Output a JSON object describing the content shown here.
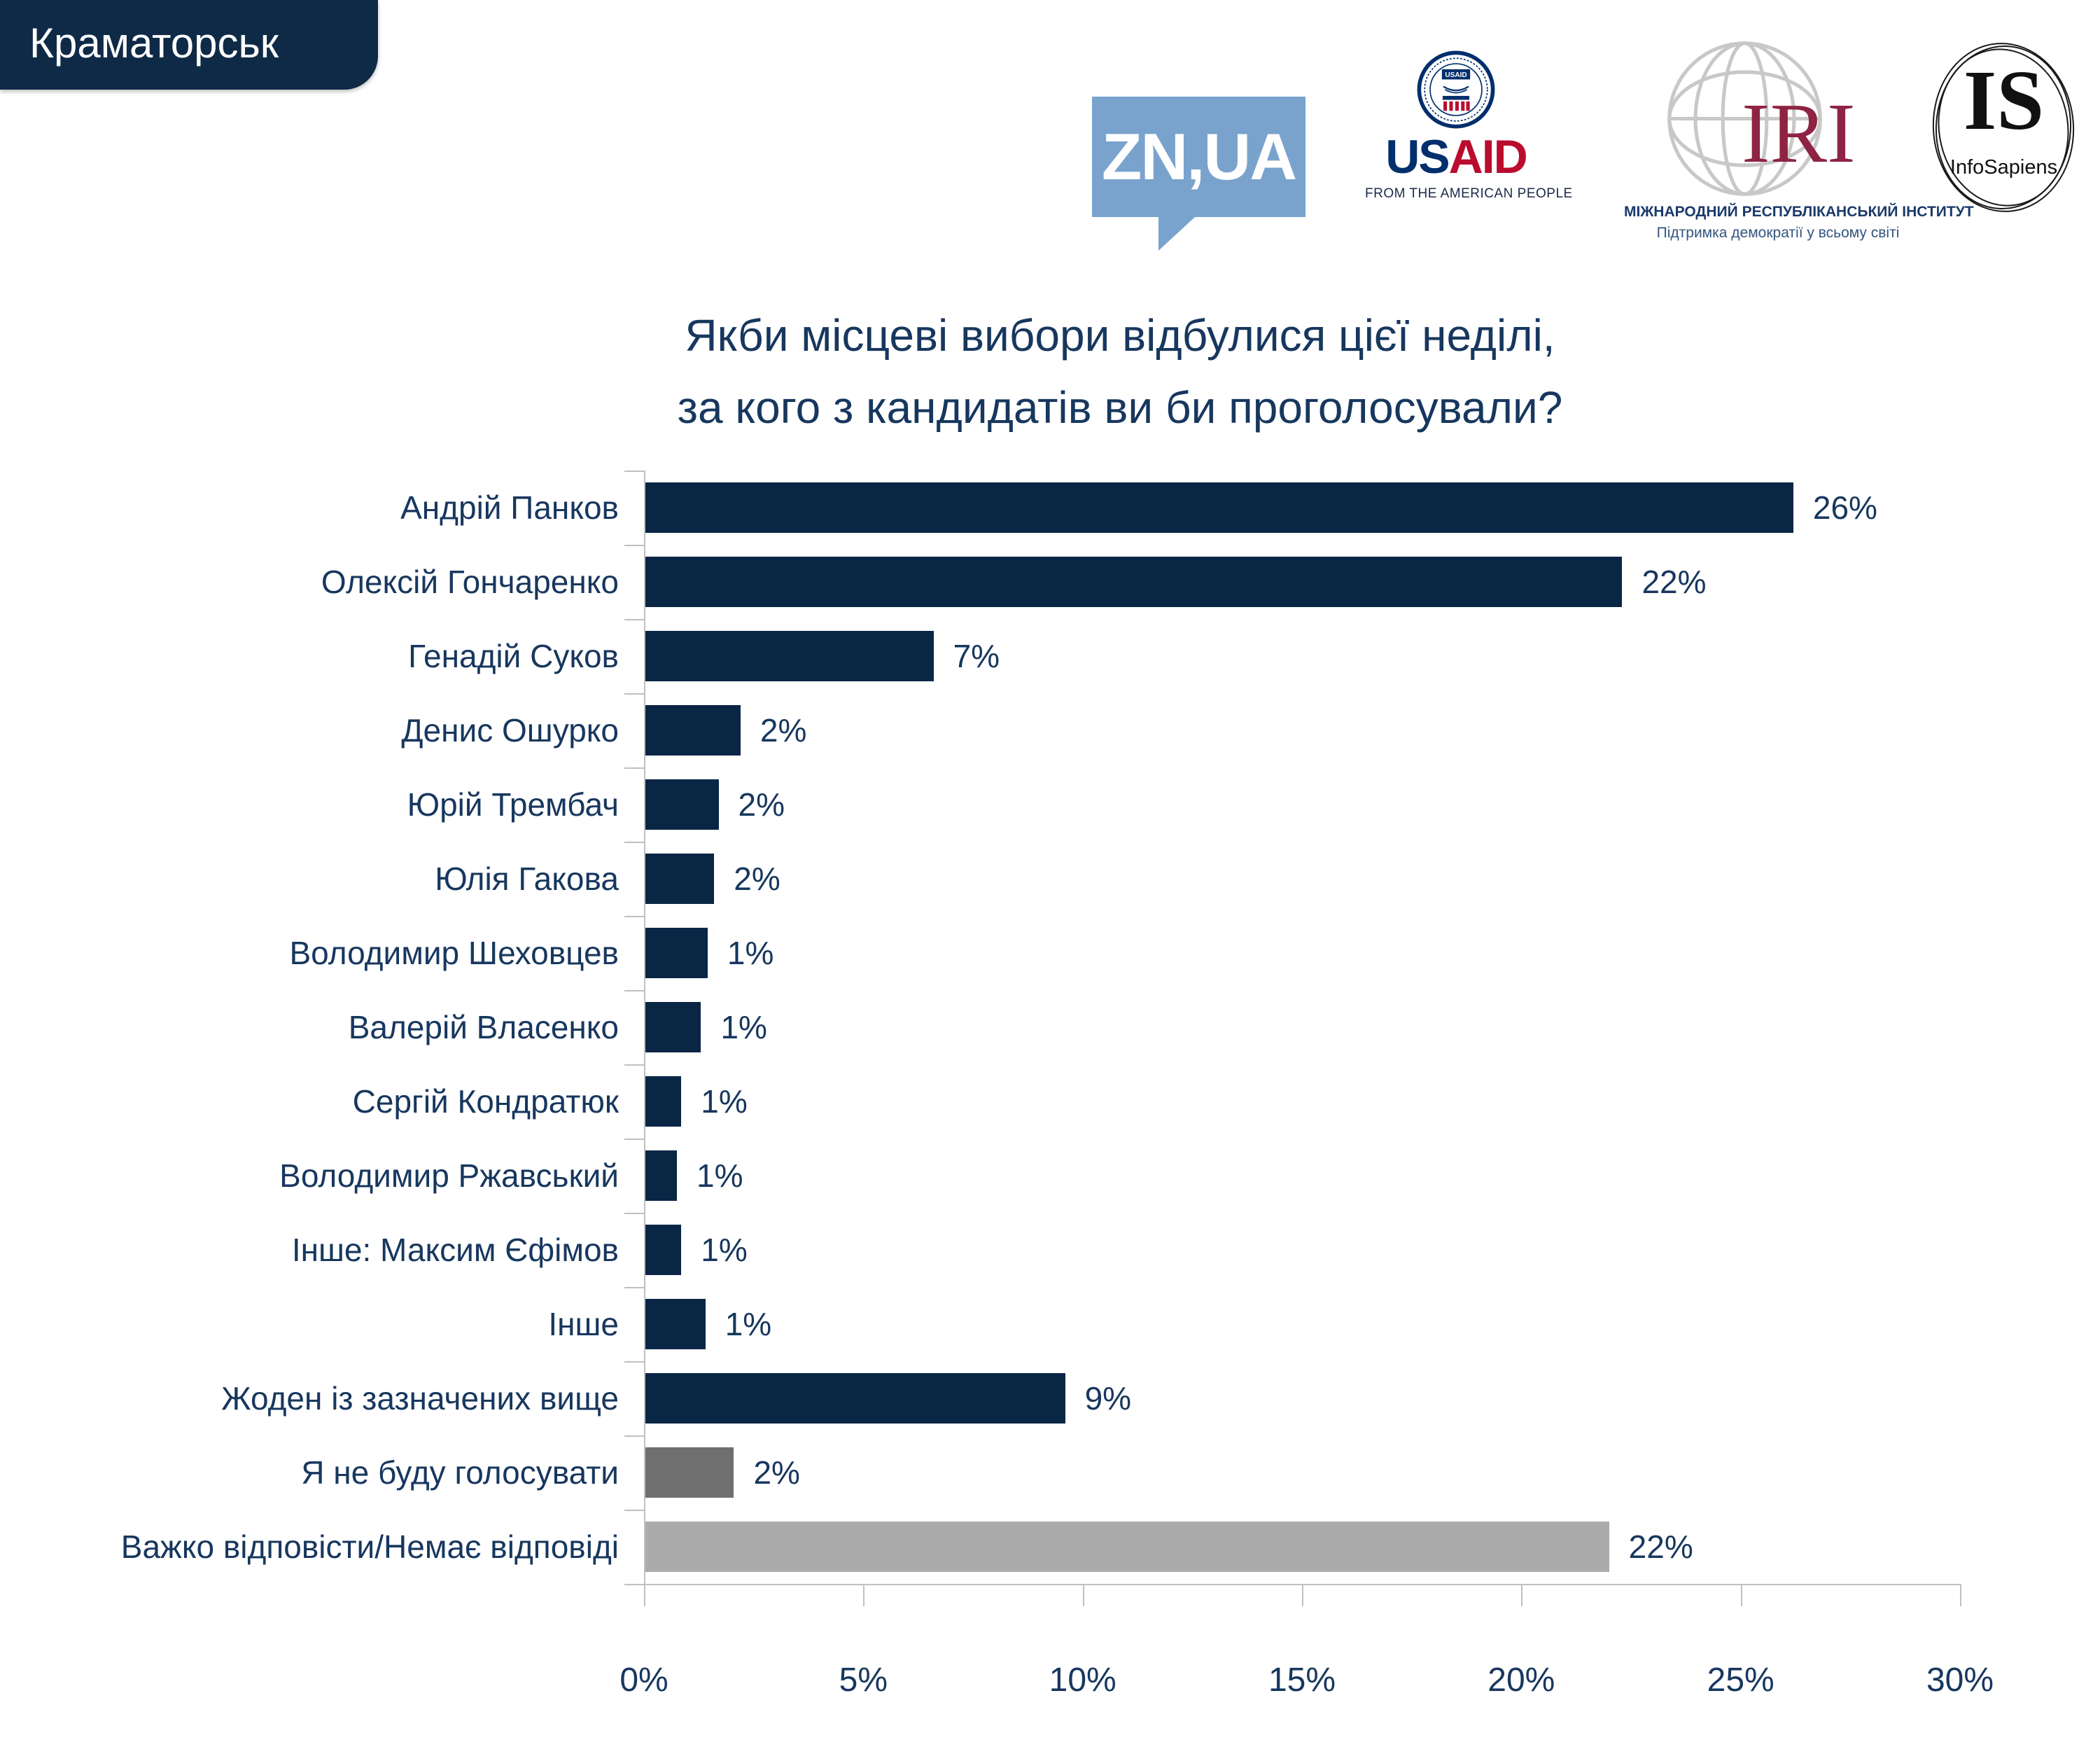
{
  "badge": {
    "label": "Краматорськ"
  },
  "logos": {
    "znua": {
      "text": "ZN,UA"
    },
    "usaid": {
      "word_us": "US",
      "word_aid": "AID",
      "tagline": "FROM THE AMERICAN PEOPLE",
      "seal_label": "USAID"
    },
    "iri": {
      "acronym": "IRI",
      "line1": "МІЖНАРОДНИЙ РЕСПУБЛІКАНСЬКИЙ ІНСТИТУТ",
      "line2": "Підтримка демократії у всьому світі"
    },
    "infosapiens": {
      "acronym": "IS",
      "name": "InfoSapiens"
    }
  },
  "title": {
    "line1": "Якби місцеві вибори відбулися цієї неділі,",
    "line2": "за кого з кандидатів ви би проголосували?"
  },
  "chart_data": {
    "type": "bar",
    "orientation": "horizontal",
    "title": "Якби місцеві вибори відбулися цієї неділі, за кого з кандидатів ви би проголосували?",
    "categories": [
      "Андрій Панков",
      "Олексій Гончаренко",
      "Генадій Суков",
      "Денис Ошурко",
      "Юрій Трембач",
      "Юлія Гакова",
      "Володимир Шеховцев",
      "Валерій Власенко",
      "Сергій Кондратюк",
      "Володимир Ржавський",
      "Інше: Максим Єфімов",
      "Інше",
      "Жоден із зазначених вище",
      "Я не буду голосувати",
      "Важко відповісти/Немає відповіді"
    ],
    "values": [
      26,
      22,
      7,
      2,
      2,
      2,
      1,
      1,
      1,
      1,
      1,
      1,
      9,
      2,
      22
    ],
    "value_labels": [
      "26%",
      "22%",
      "7%",
      "2%",
      "2%",
      "2%",
      "1%",
      "1%",
      "1%",
      "1%",
      "1%",
      "1%",
      "9%",
      "2%",
      "22%"
    ],
    "bar_lengths_pct": [
      26.2,
      22.3,
      6.6,
      2.2,
      1.7,
      1.6,
      1.45,
      1.3,
      0.85,
      0.75,
      0.85,
      1.4,
      9.6,
      2.05,
      22.0
    ],
    "bar_colors": [
      "#0A2645",
      "#0A2645",
      "#0A2645",
      "#0A2645",
      "#0A2645",
      "#0A2645",
      "#0A2645",
      "#0A2645",
      "#0A2645",
      "#0A2645",
      "#0A2645",
      "#0A2645",
      "#0A2645",
      "#6F6F6F",
      "#ABABAB"
    ],
    "x_tick_labels": [
      "0%",
      "5%",
      "10%",
      "15%",
      "20%",
      "25%",
      "30%"
    ],
    "xlim": [
      0,
      30
    ],
    "grid": false,
    "legend": false
  },
  "colors": {
    "navy_bar": "#0A2645",
    "text_navy": "#17375E",
    "gray_dark": "#6F6F6F",
    "gray_light": "#ABABAB",
    "axis_gray": "#C0C0C0",
    "zn_blue": "#79A3CD",
    "usaid_navy": "#002F6C",
    "usaid_red": "#BA0C2F",
    "iri_maroon": "#8E2344"
  }
}
